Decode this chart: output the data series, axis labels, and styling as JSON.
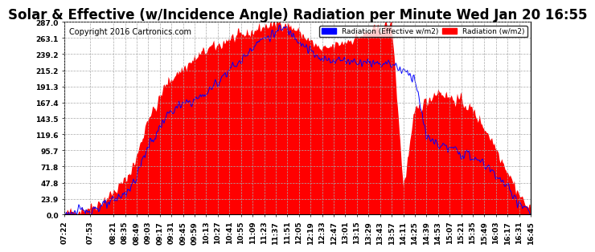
{
  "title": "Solar & Effective (w/Incidence Angle) Radiation per Minute Wed Jan 20 16:55",
  "copyright": "Copyright 2016 Cartronics.com",
  "legend_blue": "Radiation (Effective w/m2)",
  "legend_red": "Radiation (w/m2)",
  "ylim": [
    0,
    287.0
  ],
  "yticks": [
    0.0,
    23.9,
    47.8,
    71.8,
    95.7,
    119.6,
    143.5,
    167.4,
    191.3,
    215.2,
    239.2,
    263.1,
    287.0
  ],
  "ytick_labels": [
    "0.0",
    "23.9",
    "47.8",
    "71.8",
    "95.7",
    "119.6",
    "143.5",
    "167.4",
    "191.3",
    "215.2",
    "239.2",
    "263.1",
    "287.0"
  ],
  "xtick_labels": [
    "07:22",
    "07:53",
    "08:21",
    "08:35",
    "08:49",
    "09:03",
    "09:17",
    "09:31",
    "09:45",
    "09:59",
    "10:13",
    "10:27",
    "10:41",
    "10:55",
    "11:09",
    "11:23",
    "11:37",
    "11:51",
    "12:05",
    "12:19",
    "12:33",
    "12:47",
    "13:01",
    "13:15",
    "13:29",
    "13:43",
    "13:57",
    "14:11",
    "14:25",
    "14:39",
    "14:53",
    "15:07",
    "15:21",
    "15:35",
    "15:49",
    "16:03",
    "16:17",
    "16:31",
    "16:45"
  ],
  "background_color": "#ffffff",
  "plot_bg_color": "#ffffff",
  "grid_color": "#aaaaaa",
  "fill_color": "#ff0000",
  "line_color": "#0000ff",
  "title_fontsize": 12,
  "copyright_fontsize": 7,
  "tick_fontsize": 6.5
}
